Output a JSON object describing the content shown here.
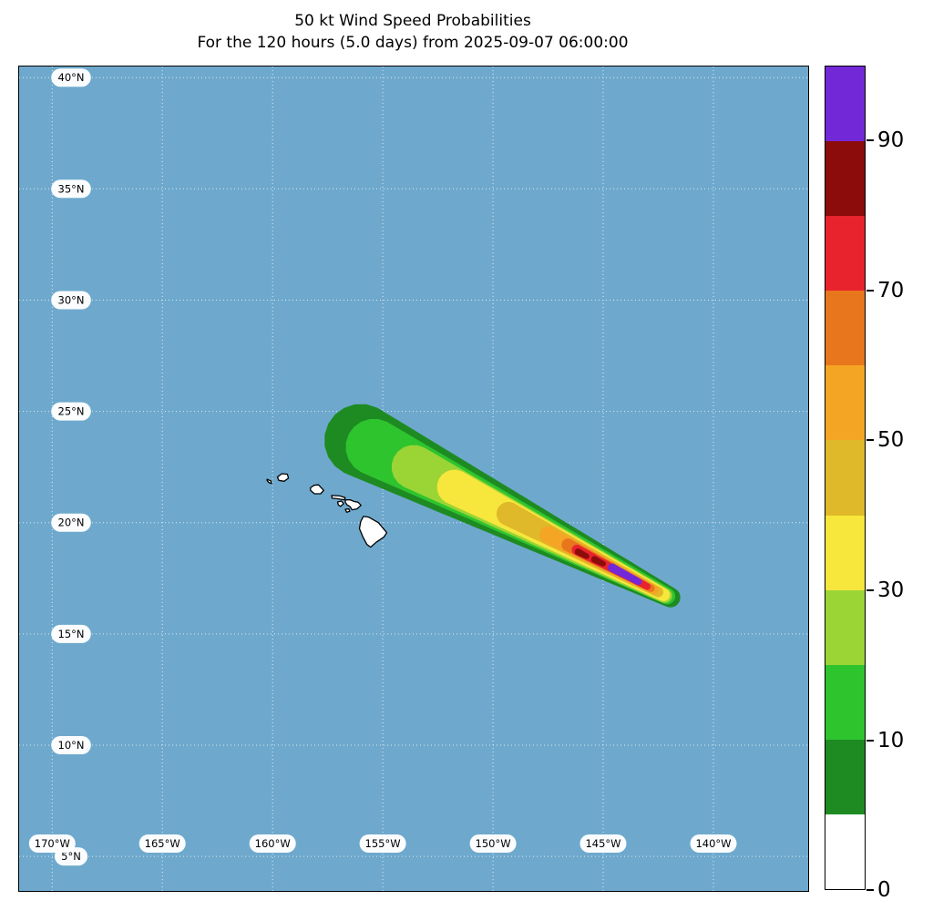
{
  "title": {
    "line1": "50 kt Wind Speed Probabilities",
    "line2": "For the 120 hours (5.0 days) from 2025-09-07 06:00:00"
  },
  "chart_data": {
    "type": "heatmap",
    "subtype": "geographic-probability-swath",
    "title": "50 kt Wind Speed Probabilities",
    "subtitle": "For the 120 hours (5.0 days) from 2025-09-07 06:00:00",
    "forecast_start": "2025-09-07 06:00:00",
    "forecast_hours": 120,
    "forecast_days": 5.0,
    "wind_threshold_kt": 50,
    "value_units": "probability (%)",
    "axes": {
      "lon_west_left": 171.5,
      "lon_west_right": 135.7,
      "lat_top": 40.5,
      "lat_bottom": 3.45,
      "grid_lats": [
        40,
        35,
        30,
        25,
        20,
        15,
        10,
        5
      ],
      "grid_lons_w": [
        170,
        165,
        160,
        155,
        150,
        145,
        140
      ],
      "lat_suffix": "°N",
      "lon_suffix": "°W"
    },
    "colors": {
      "ocean": "#6ea9cd",
      "grid": "#e3ecf2",
      "land_fill": "#ffffff",
      "land_stroke": "#000000",
      "frame": "#000000"
    },
    "levels": [
      {
        "min": 0,
        "max": 5,
        "color": "#ffffff"
      },
      {
        "min": 5,
        "max": 10,
        "color": "#1e8b22"
      },
      {
        "min": 10,
        "max": 20,
        "color": "#2ec42e"
      },
      {
        "min": 20,
        "max": 30,
        "color": "#9bd435"
      },
      {
        "min": 30,
        "max": 40,
        "color": "#f7e73c"
      },
      {
        "min": 40,
        "max": 50,
        "color": "#dfb929"
      },
      {
        "min": 50,
        "max": 60,
        "color": "#f5a524"
      },
      {
        "min": 60,
        "max": 70,
        "color": "#e8761c"
      },
      {
        "min": 70,
        "max": 80,
        "color": "#e8232e"
      },
      {
        "min": 80,
        "max": 90,
        "color": "#8c0b0b"
      },
      {
        "min": 90,
        "max": 100,
        "color": "#7328d8"
      }
    ],
    "colorbar_ticks": [
      {
        "label": "0",
        "boundary_index": 0
      },
      {
        "label": "10",
        "boundary_index": 2
      },
      {
        "label": "30",
        "boundary_index": 4
      },
      {
        "label": "50",
        "boundary_index": 6
      },
      {
        "label": "70",
        "boundary_index": 8
      },
      {
        "label": "90",
        "boundary_index": 10
      }
    ],
    "swath_layers": [
      {
        "level_pct": 5,
        "color": "#1e8b22",
        "from": [
          156.0,
          23.7
        ],
        "to": [
          141.95,
          16.64
        ],
        "w_from": 1.65,
        "w_to": 0.45
      },
      {
        "level_pct": 10,
        "color": "#2ec42e",
        "from": [
          155.4,
          23.4
        ],
        "to": [
          142.1,
          16.7
        ],
        "w_from": 1.28,
        "w_to": 0.37
      },
      {
        "level_pct": 20,
        "color": "#9bd435",
        "from": [
          153.6,
          22.5
        ],
        "to": [
          142.2,
          16.72
        ],
        "w_from": 1.0,
        "w_to": 0.33
      },
      {
        "level_pct": 30,
        "color": "#f7e73c",
        "from": [
          151.75,
          21.6
        ],
        "to": [
          142.26,
          16.76
        ],
        "w_from": 0.79,
        "w_to": 0.29
      },
      {
        "level_pct": 40,
        "color": "#dfb929",
        "from": [
          149.3,
          20.4
        ],
        "to": [
          142.5,
          16.88
        ],
        "w_from": 0.54,
        "w_to": 0.23
      },
      {
        "level_pct": 50,
        "color": "#f5a524",
        "from": [
          147.5,
          19.46
        ],
        "to": [
          142.66,
          16.96
        ],
        "w_from": 0.39,
        "w_to": 0.19
      },
      {
        "level_pct": 60,
        "color": "#e8761c",
        "from": [
          146.6,
          19.0
        ],
        "to": [
          142.83,
          17.05
        ],
        "w_from": 0.29,
        "w_to": 0.17
      },
      {
        "level_pct": 70,
        "color": "#e8232e",
        "from": [
          146.2,
          18.78
        ],
        "to": [
          143.0,
          17.13
        ],
        "w_from": 0.23,
        "w_to": 0.15
      },
      {
        "level_pct": 80,
        "color": "#8c0b0b",
        "from": [
          146.14,
          18.69
        ],
        "to": [
          145.75,
          18.49
        ],
        "w_from": 0.15,
        "w_to": 0.12
      },
      {
        "level_pct": 80,
        "color": "#8c0b0b",
        "from": [
          145.4,
          18.35
        ],
        "to": [
          145.0,
          18.15
        ],
        "w_from": 0.15,
        "w_to": 0.12
      },
      {
        "level_pct": 90,
        "color": "#7328d8",
        "from": [
          144.6,
          17.98
        ],
        "to": [
          143.4,
          17.35
        ],
        "w_from": 0.19,
        "w_to": 0.15
      }
    ],
    "islands": [
      {
        "name": "Niihau",
        "points": [
          [
            160.25,
            21.95
          ],
          [
            160.08,
            21.88
          ],
          [
            160.05,
            21.76
          ],
          [
            160.17,
            21.8
          ],
          [
            160.25,
            21.9
          ]
        ]
      },
      {
        "name": "Kauai",
        "points": [
          [
            159.78,
            22.05
          ],
          [
            159.58,
            22.2
          ],
          [
            159.33,
            22.18
          ],
          [
            159.28,
            22.0
          ],
          [
            159.48,
            21.86
          ],
          [
            159.72,
            21.9
          ]
        ]
      },
      {
        "name": "Oahu",
        "points": [
          [
            158.28,
            21.57
          ],
          [
            158.12,
            21.68
          ],
          [
            157.92,
            21.7
          ],
          [
            157.68,
            21.45
          ],
          [
            157.82,
            21.3
          ],
          [
            158.1,
            21.3
          ],
          [
            158.28,
            21.45
          ]
        ]
      },
      {
        "name": "Molokai",
        "points": [
          [
            157.32,
            21.22
          ],
          [
            156.95,
            21.2
          ],
          [
            156.7,
            21.12
          ],
          [
            156.75,
            21.03
          ],
          [
            157.08,
            21.08
          ],
          [
            157.3,
            21.1
          ]
        ]
      },
      {
        "name": "Lanai",
        "points": [
          [
            157.05,
            20.93
          ],
          [
            156.88,
            20.97
          ],
          [
            156.78,
            20.85
          ],
          [
            156.92,
            20.73
          ],
          [
            157.02,
            20.8
          ]
        ]
      },
      {
        "name": "Maui",
        "points": [
          [
            156.7,
            21.02
          ],
          [
            156.48,
            21.03
          ],
          [
            156.3,
            20.95
          ],
          [
            156.12,
            20.92
          ],
          [
            155.99,
            20.78
          ],
          [
            156.17,
            20.62
          ],
          [
            156.4,
            20.58
          ],
          [
            156.48,
            20.72
          ],
          [
            156.62,
            20.8
          ],
          [
            156.7,
            20.92
          ]
        ]
      },
      {
        "name": "Kahoolawe",
        "points": [
          [
            156.7,
            20.6
          ],
          [
            156.54,
            20.62
          ],
          [
            156.5,
            20.51
          ],
          [
            156.64,
            20.47
          ]
        ]
      },
      {
        "name": "Hawaii",
        "points": [
          [
            155.88,
            20.28
          ],
          [
            155.65,
            20.25
          ],
          [
            155.2,
            20.0
          ],
          [
            154.82,
            19.55
          ],
          [
            154.95,
            19.35
          ],
          [
            155.3,
            19.12
          ],
          [
            155.55,
            18.9
          ],
          [
            155.72,
            19.02
          ],
          [
            155.9,
            19.35
          ],
          [
            156.06,
            19.73
          ],
          [
            156.0,
            20.05
          ]
        ]
      }
    ]
  }
}
